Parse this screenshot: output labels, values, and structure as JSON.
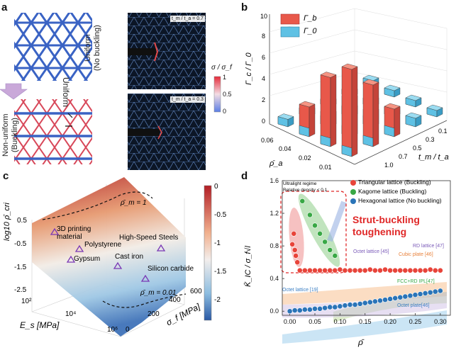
{
  "panels": {
    "a": {
      "letter": "a",
      "uniform_label_1": "Uniform",
      "uniform_label_2": "(No buckling)",
      "nonuniform_label_1": "Non-uniform",
      "nonuniform_label_2": "(Buckling)",
      "sim_top_ratio": "t_m / t_a = 0.7",
      "sim_bottom_ratio": "t_m / t_a = 0.3",
      "colorbar_title": "σ / σ_f",
      "colorbar_ticks": [
        "1",
        "0.5",
        "0"
      ],
      "colors": {
        "blue_lattice": "#3a63c4",
        "red_lattice": "#d8485a",
        "sim_bg": "#0c1626"
      }
    },
    "b": {
      "letter": "b",
      "ylabel": "Γ_c / Γ_0",
      "legend": [
        "Γ_b",
        "Γ_0"
      ],
      "yticks": [
        "0",
        "2",
        "4",
        "6",
        "8",
        "10"
      ],
      "x_ticks": [
        "0.06",
        "0.04",
        "0.02",
        "0.01"
      ],
      "x_label": "ρ̄_a",
      "z_ticks": [
        "0.1",
        "0.3",
        "0.5",
        "0.7",
        "1.0"
      ],
      "z_label": "t_m / t_a",
      "colors": {
        "buckling": "#e8584a",
        "base": "#5fc1e4"
      }
    },
    "c": {
      "letter": "c",
      "zlabel": "log10 ρ̄_cri",
      "zticks": [
        "0.5",
        "-0.5",
        "-1.5",
        "-2.5"
      ],
      "xlabel": "E_s [MPa]",
      "xticks": [
        "10²",
        "10⁴",
        "10⁶"
      ],
      "ylabel": "σ_f [MPa]",
      "yticks": [
        "0",
        "200",
        "400",
        "600"
      ],
      "contour_top": "ρ̄_m = 1",
      "contour_bottom": "ρ̄_m = 0.01",
      "materials": [
        "3D printing",
        "material",
        "Polystyrene",
        "High-Speed Steels",
        "Gypsum",
        "Cast iron",
        "Silicon carbide"
      ],
      "colorbar_ticks": [
        "0",
        "-0.5",
        "-1",
        "-1.5",
        "-2"
      ]
    },
    "d": {
      "letter": "d",
      "ylabel": "K̄_IC / σ_f√l",
      "xlabel": "ρ̄",
      "xticks": [
        "0.00",
        "0.05",
        "0.10",
        "0.15",
        "0.20",
        "0.25",
        "0.30"
      ],
      "yticks": [
        "0.0",
        "0.4",
        "0.8",
        "1.2",
        "1.6"
      ],
      "legend": [
        "Triangular lattice (Buckling)",
        "Kagome lattice (Buckling)",
        "Hexagonal lattice (No buckling)"
      ],
      "regime_title": "Ultralight regime",
      "regime_sub": "Relative density < 0.1",
      "highlight": [
        "Strut-buckling",
        "toughening"
      ],
      "annotations": [
        "Octet lattice [45]",
        "Cubic plate [46]",
        "RD lattice [47]",
        "FCC+RD IPL[47]",
        "Octet lattice [19]",
        "Octet plate[46]"
      ],
      "colors": {
        "triangular": "#e8443a",
        "kagome": "#39a845",
        "hexagonal": "#2a74b8",
        "highlight": "#e02828"
      }
    }
  },
  "chart_data": {
    "type": "scatter",
    "xlabel": "ρ̄",
    "ylabel": "K̄_IC / σ_f√l",
    "xlim": [
      -0.015,
      0.32
    ],
    "ylim": [
      -0.05,
      1.6
    ],
    "legend_position": "top-right",
    "series": [
      {
        "name": "Triangular lattice (Buckling)",
        "x": [
          0.005,
          0.008,
          0.01,
          0.012,
          0.015,
          0.02,
          0.03,
          0.04,
          0.05,
          0.06,
          0.07,
          0.08,
          0.09,
          0.1,
          0.11,
          0.12,
          0.13,
          0.14,
          0.15,
          0.16,
          0.17,
          0.18,
          0.19,
          0.2,
          0.21,
          0.22,
          0.23,
          0.24,
          0.25,
          0.26,
          0.27,
          0.28,
          0.29,
          0.3
        ],
        "y": [
          0.82,
          0.95,
          0.75,
          0.68,
          0.6,
          0.5,
          0.5,
          0.5,
          0.5,
          0.5,
          0.5,
          0.5,
          0.5,
          0.51,
          0.5,
          0.5,
          0.5,
          0.5,
          0.5,
          0.51,
          0.5,
          0.5,
          0.51,
          0.5,
          0.5,
          0.5,
          0.5,
          0.5,
          0.5,
          0.5,
          0.5,
          0.51,
          0.5,
          0.5
        ]
      },
      {
        "name": "Kagome lattice (Buckling)",
        "x": [
          0.025,
          0.04,
          0.05,
          0.06,
          0.07,
          0.08,
          0.09
        ],
        "y": [
          1.35,
          1.18,
          1.05,
          0.95,
          0.85,
          0.75,
          0.68
        ]
      },
      {
        "name": "Hexagonal lattice (No buckling)",
        "x": [
          0.0,
          0.01,
          0.02,
          0.03,
          0.04,
          0.05,
          0.06,
          0.07,
          0.08,
          0.09,
          0.1,
          0.11,
          0.12,
          0.13,
          0.14,
          0.15,
          0.16,
          0.17,
          0.18,
          0.19,
          0.2,
          0.21,
          0.22,
          0.23,
          0.24,
          0.25,
          0.26,
          0.27,
          0.28,
          0.29,
          0.3
        ],
        "y": [
          0.0,
          0.01,
          0.01,
          0.02,
          0.02,
          0.03,
          0.03,
          0.04,
          0.05,
          0.05,
          0.06,
          0.07,
          0.08,
          0.08,
          0.09,
          0.1,
          0.11,
          0.12,
          0.13,
          0.14,
          0.15,
          0.16,
          0.17,
          0.18,
          0.19,
          0.2,
          0.21,
          0.22,
          0.23,
          0.24,
          0.25
        ]
      }
    ]
  }
}
